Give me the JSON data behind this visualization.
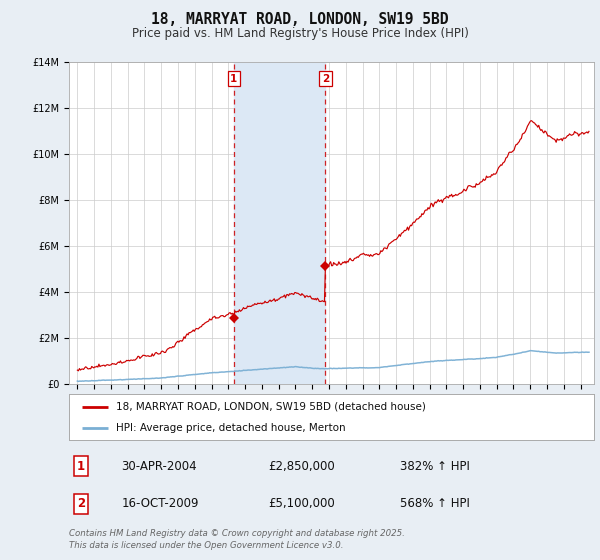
{
  "title": "18, MARRYAT ROAD, LONDON, SW19 5BD",
  "subtitle": "Price paid vs. HM Land Registry's House Price Index (HPI)",
  "hpi_label": "HPI: Average price, detached house, Merton",
  "price_label": "18, MARRYAT ROAD, LONDON, SW19 5BD (detached house)",
  "annotation1_date": "30-APR-2004",
  "annotation1_price": "£2,850,000",
  "annotation1_hpi": "382% ↑ HPI",
  "annotation1_year": 2004.33,
  "annotation1_value": 2850000,
  "annotation2_date": "16-OCT-2009",
  "annotation2_price": "£5,100,000",
  "annotation2_hpi": "568% ↑ HPI",
  "annotation2_year": 2009.79,
  "annotation2_value": 5100000,
  "footer": "Contains HM Land Registry data © Crown copyright and database right 2025.\nThis data is licensed under the Open Government Licence v3.0.",
  "ylim_max": 14000000,
  "price_color": "#cc0000",
  "hpi_color": "#7aafd4",
  "vline_color": "#cc0000",
  "span_color": "#dce8f5",
  "background_color": "#e8eef4",
  "plot_bg": "#ffffff",
  "title_fontsize": 10.5,
  "subtitle_fontsize": 8.5,
  "tick_fontsize": 7
}
